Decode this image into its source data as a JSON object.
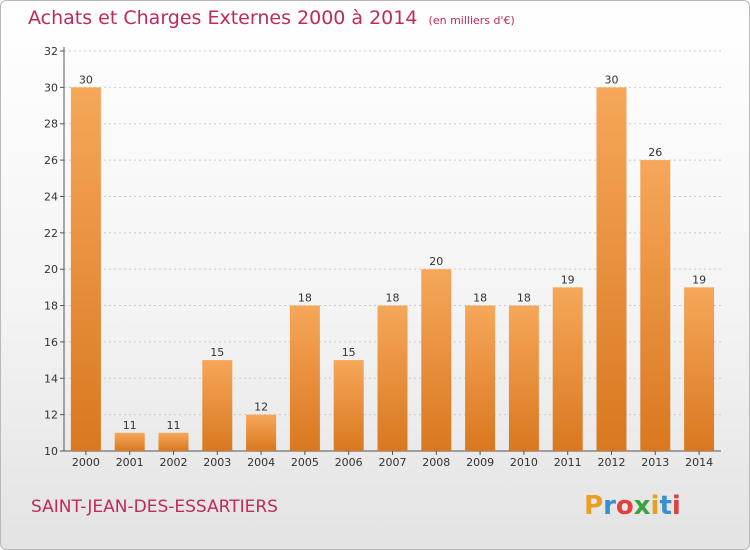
{
  "header": {
    "title": "Achats et Charges Externes 2000 à 2014",
    "subtitle": "(en milliers d'€)"
  },
  "footer": {
    "commune": "SAINT-JEAN-DES-ESSARTIERS",
    "logo_text": "Proxiti",
    "logo_colors": [
      "#e8a020",
      "#3a8fd0",
      "#e04040",
      "#3aa040",
      "#e8a020",
      "#3a8fd0",
      "#e04040"
    ]
  },
  "colors": {
    "bar_light": "#f6a75a",
    "bar_dark": "#d9781f",
    "title": "#c02a5a",
    "grid": "#cccccc"
  },
  "chart_data": {
    "type": "bar",
    "title": "Achats et Charges Externes 2000 à 2014",
    "subtitle": "(en milliers d'€)",
    "xlabel": "",
    "ylabel": "",
    "categories": [
      "2000",
      "2001",
      "2002",
      "2003",
      "2004",
      "2005",
      "2006",
      "2007",
      "2008",
      "2009",
      "2010",
      "2011",
      "2012",
      "2013",
      "2014"
    ],
    "values": [
      30,
      11,
      11,
      15,
      12,
      18,
      15,
      18,
      20,
      18,
      18,
      19,
      30,
      26,
      19
    ],
    "ylim": [
      10,
      32
    ],
    "yticks": [
      10,
      12,
      14,
      16,
      18,
      20,
      22,
      24,
      26,
      28,
      30,
      32
    ],
    "grid": true
  }
}
